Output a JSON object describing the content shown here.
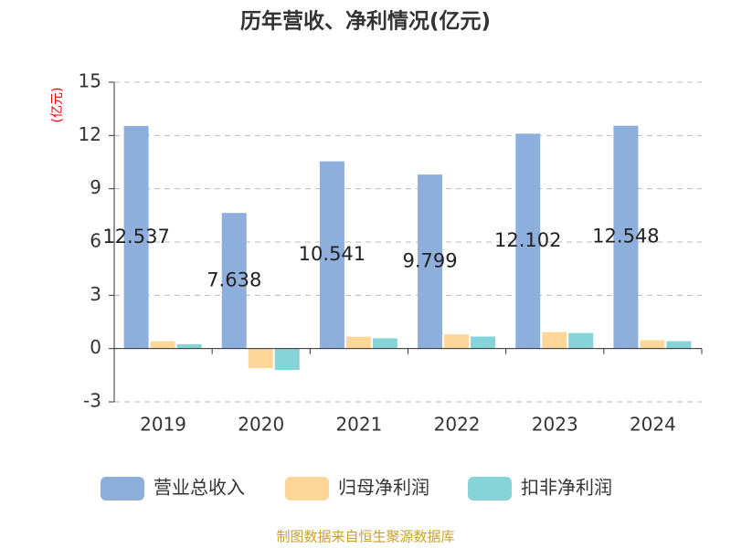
{
  "chart_data": {
    "type": "bar",
    "title": "历年营收、净利情况(亿元)",
    "y_label": "(亿元)",
    "categories": [
      "2019",
      "2020",
      "2021",
      "2022",
      "2023",
      "2024"
    ],
    "series": [
      {
        "name": "营业总收入",
        "color": "#8eaedb",
        "values": [
          12.537,
          7.638,
          10.541,
          9.799,
          12.102,
          12.548
        ],
        "show_labels": true
      },
      {
        "name": "归母净利润",
        "color": "#fdd698",
        "values": [
          0.42,
          -1.1,
          0.67,
          0.8,
          0.93,
          0.47
        ],
        "show_labels": false
      },
      {
        "name": "扣非净利润",
        "color": "#86d4d8",
        "values": [
          0.25,
          -1.2,
          0.58,
          0.68,
          0.88,
          0.42
        ],
        "show_labels": false
      }
    ],
    "ylim": [
      -3,
      15
    ],
    "yticks": [
      -3,
      0,
      3,
      6,
      9,
      12,
      15
    ],
    "grid": true,
    "legend": "bottom",
    "source": "制图数据来自恒生聚源数据库"
  }
}
